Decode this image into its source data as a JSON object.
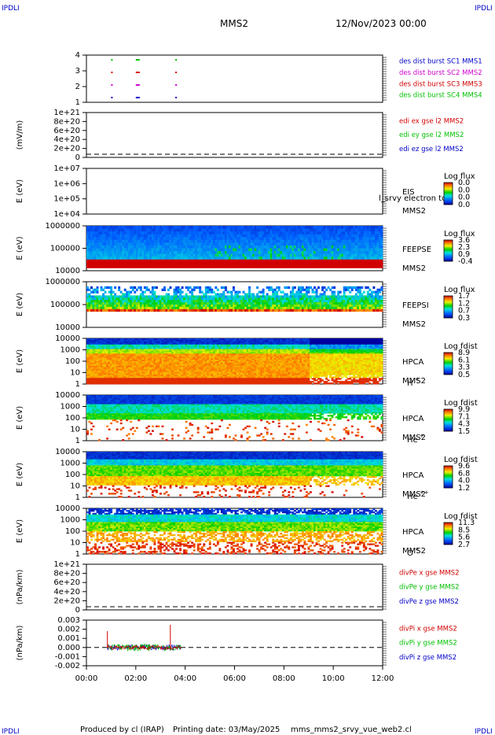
{
  "header": {
    "corner_label": "IPDLI",
    "spacecraft": "MMS2",
    "datetime": "12/Nov/2023 00:00"
  },
  "footer": {
    "produced_by": "Produced by cl (IRAP)",
    "printing_date": "Printing date: 03/May/2025",
    "script_name": "mms_mms2_srvy_vue_web2.cl"
  },
  "colors": {
    "red": "#d40000",
    "magenta": "#d000d0",
    "green": "#00c000",
    "blue": "#0000c8"
  },
  "chart_data": [
    {
      "type": "scatter",
      "panel": "burst",
      "ylim": [
        1,
        4
      ],
      "yticks": [
        "4",
        "3",
        "2",
        "1"
      ],
      "legend": [
        {
          "name": "des dist burst SC1 MMS1",
          "color": "#0000c8"
        },
        {
          "name": "des dist burst SC2 MMS2",
          "color": "#d000d0"
        },
        {
          "name": "des dist burst SC3 MMS3",
          "color": "#d40000"
        },
        {
          "name": "des dist burst SC4 MMS4",
          "color": "#00c000"
        }
      ]
    },
    {
      "type": "line",
      "panel": "edi",
      "ylabel": "(mV/m)",
      "yticks": [
        "1e+21",
        "8e+20",
        "6e+20",
        "4e+20",
        "2e+20",
        "0"
      ],
      "legend": [
        {
          "name": "edi ex gse l2 MMS2",
          "color": "#d40000"
        },
        {
          "name": "edi ey gse l2 MMS2",
          "color": "#00c000"
        },
        {
          "name": "edi ez gse l2 MMS2",
          "color": "#0000c8"
        }
      ]
    },
    {
      "type": "heatmap",
      "panel": "eis",
      "ylabel": "E (eV)",
      "yticks": [
        "1e+07",
        "1e+06",
        "1e+05",
        "1e+04"
      ],
      "instrument": [
        "EIS",
        "MMS2"
      ],
      "overlay_text": "l_srvy electron to",
      "colorbar_title": "Log flux",
      "colorbar_ticks": [
        "0.0",
        "0.0",
        "0.0",
        "0.0"
      ]
    },
    {
      "type": "heatmap",
      "panel": "feepse",
      "ylabel": "E (eV)",
      "yticks": [
        "1000000",
        "100000",
        "10000"
      ],
      "instrument": [
        "FEEPSE",
        "MMS2"
      ],
      "colorbar_title": "Log flux",
      "colorbar_ticks": [
        "3.6",
        "2.3",
        "0.9",
        "-0.4"
      ]
    },
    {
      "type": "heatmap",
      "panel": "feepsi",
      "ylabel": "E (eV)",
      "yticks": [
        "1000000",
        "100000",
        "10000"
      ],
      "instrument": [
        "FEEPSI",
        "MMS2"
      ],
      "colorbar_title": "Log flux",
      "colorbar_ticks": [
        "1.7",
        "1.2",
        "0.7",
        "0.3"
      ]
    },
    {
      "type": "heatmap",
      "panel": "hpca_h",
      "ylabel": "E (eV)",
      "yticks": [
        "10000",
        "1000",
        "100",
        "10",
        "1"
      ],
      "instrument": [
        "HPCA",
        "MMS2"
      ],
      "species": "H",
      "species_sup": "+",
      "colorbar_title": "Log fdist",
      "colorbar_ticks": [
        "8.9",
        "6.1",
        "3.3",
        "0.5"
      ]
    },
    {
      "type": "heatmap",
      "panel": "hpca_he",
      "ylabel": "E (eV)",
      "yticks": [
        "10000",
        "1000",
        "100",
        "10",
        "1"
      ],
      "instrument": [
        "HPCA",
        "MMS2"
      ],
      "species": "He",
      "species_sup": "+",
      "colorbar_title": "Log fdist",
      "colorbar_ticks": [
        "9.9",
        "7.1",
        "4.3",
        "1.5"
      ]
    },
    {
      "type": "heatmap",
      "panel": "hpca_hepp",
      "ylabel": "E (eV)",
      "yticks": [
        "10000",
        "1000",
        "100",
        "10",
        "1"
      ],
      "instrument": [
        "HPCA",
        "MMS2"
      ],
      "species": "He",
      "species_sup": "++",
      "colorbar_title": "Log fdist",
      "colorbar_ticks": [
        "9.6",
        "6.8",
        "4.0",
        "1.2"
      ]
    },
    {
      "type": "heatmap",
      "panel": "hpca_o",
      "ylabel": "E (eV)",
      "yticks": [
        "10000",
        "1000",
        "100",
        "10",
        "1"
      ],
      "instrument": [
        "HPCA",
        "MMS2"
      ],
      "species": "O",
      "species_sup": "+",
      "colorbar_title": "Log fdist",
      "colorbar_ticks": [
        "11.3",
        "8.5",
        "5.6",
        "2.7"
      ]
    },
    {
      "type": "line",
      "panel": "divpe",
      "ylabel": "(nPa/km)",
      "yticks": [
        "1e+21",
        "8e+20",
        "6e+20",
        "4e+20",
        "2e+20",
        "0"
      ],
      "legend": [
        {
          "name": "divPe x gse MMS2",
          "color": "#d40000"
        },
        {
          "name": "divPe y gse MMS2",
          "color": "#00c000"
        },
        {
          "name": "divPe z gse MMS2",
          "color": "#0000c8"
        }
      ]
    },
    {
      "type": "line",
      "panel": "divpi",
      "ylabel": "(nPa/km)",
      "ylim": [
        -0.002,
        0.003
      ],
      "yticks": [
        "0.003",
        "0.002",
        "0.001",
        "0.000",
        "-0.001",
        "-0.002"
      ],
      "legend": [
        {
          "name": "divPi x gse MMS2",
          "color": "#d40000"
        },
        {
          "name": "divPi y gse MMS2",
          "color": "#00c000"
        },
        {
          "name": "divPi z gse MMS2",
          "color": "#0000c8"
        }
      ]
    }
  ],
  "x_axis": {
    "ticks": [
      "00:00",
      "02:00",
      "04:00",
      "06:00",
      "08:00",
      "10:00",
      "12:00"
    ],
    "xlim_hours": [
      0,
      12
    ]
  }
}
